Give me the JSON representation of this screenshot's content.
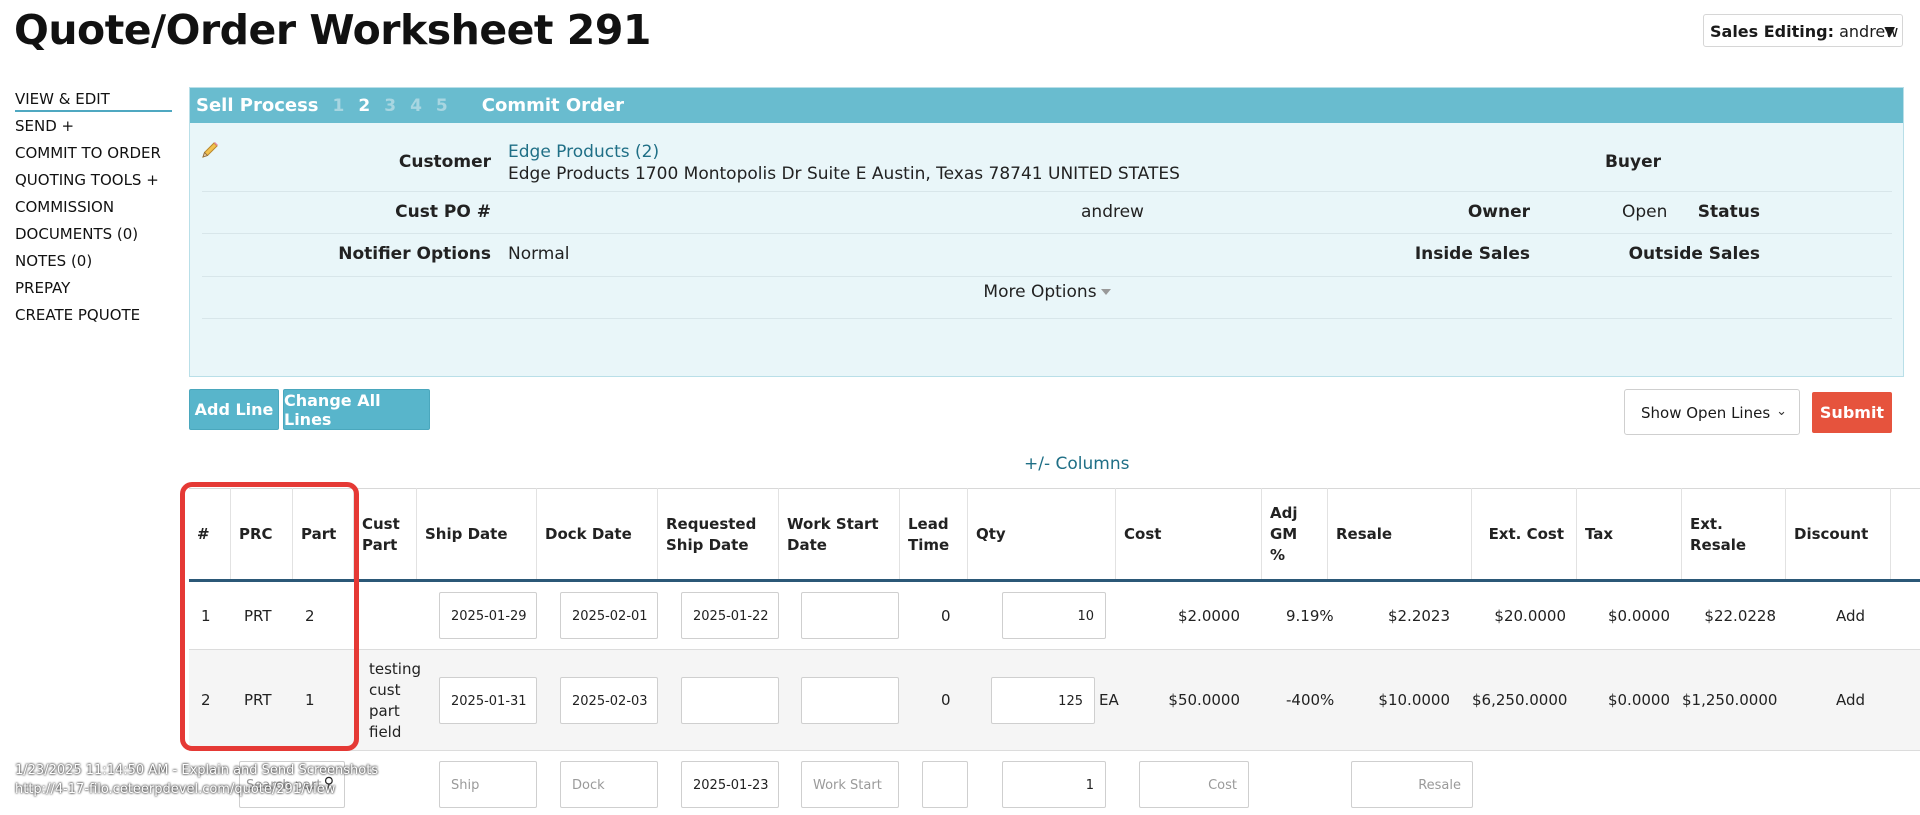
{
  "page": {
    "title": "Quote/Order Worksheet 291"
  },
  "sales_editing": {
    "label": "Sales Editing:",
    "user": "andrew"
  },
  "side_nav": {
    "items": [
      "VIEW & EDIT",
      "SEND +",
      "COMMIT TO ORDER",
      "QUOTING TOOLS +",
      "COMMISSION",
      "DOCUMENTS (0)",
      "NOTES (0)",
      "PREPAY",
      "CREATE PQUOTE"
    ]
  },
  "sell_process": {
    "title": "Sell Process",
    "steps": [
      "1",
      "2",
      "3",
      "4",
      "5"
    ],
    "current_step": "2",
    "commit": "Commit Order"
  },
  "details": {
    "customer_label": "Customer",
    "customer_link": "Edge Products (2)",
    "customer_address": "Edge Products 1700 Montopolis Dr Suite E Austin, Texas 78741 UNITED STATES",
    "buyer_label": "Buyer",
    "cust_po_label": "Cust PO #",
    "owner_label": "Owner",
    "owner_value": "andrew",
    "status_label": "Status",
    "status_value": "Open",
    "notifier_label": "Notifier Options",
    "notifier_value": "Normal",
    "inside_sales_label": "Inside Sales",
    "outside_sales_label": "Outside Sales",
    "more_options": "More Options"
  },
  "actions": {
    "add_line": "Add Line",
    "change_all_lines": "Change All Lines",
    "show_open_lines": "Show Open Lines",
    "submit": "Submit",
    "columns_toggle": "+/- Columns"
  },
  "table": {
    "headers": {
      "num": "#",
      "prc": "PRC",
      "part": "Part",
      "cust_part": "Cust Part",
      "ship_date": "Ship Date",
      "dock_date": "Dock Date",
      "req_ship_date": "Requested Ship Date",
      "work_start_date": "Work Start Date",
      "lead_time": "Lead Time",
      "qty": "Qty",
      "cost": "Cost",
      "adj_gm": "Adj GM %",
      "resale": "Resale",
      "ext_cost": "Ext. Cost",
      "tax": "Tax",
      "ext_resale": "Ext. Resale",
      "discount": "Discount"
    },
    "rows": [
      {
        "num": "1",
        "prc": "PRT",
        "part": "2",
        "cust_part": "",
        "ship_date": "2025-01-29",
        "dock_date": "2025-02-01",
        "req_ship_date": "2025-01-22",
        "work_start_date": "",
        "lead_time": "0",
        "qty": "10",
        "uom": "",
        "cost": "$2.0000",
        "adj_gm": "9.19%",
        "resale": "$2.2023",
        "ext_cost": "$20.0000",
        "tax": "$0.0000",
        "ext_resale": "$22.0228",
        "discount": "Add"
      },
      {
        "num": "2",
        "prc": "PRT",
        "part": "1",
        "cust_part": "testing cust part field",
        "ship_date": "2025-01-31",
        "dock_date": "2025-02-03",
        "req_ship_date": "",
        "work_start_date": "",
        "lead_time": "0",
        "qty": "125",
        "uom": "EA",
        "cost": "$50.0000",
        "adj_gm": "-400%",
        "resale": "$10.0000",
        "ext_cost": "$6,250.0000",
        "tax": "$0.0000",
        "ext_resale": "$1,250.0000",
        "discount": "Add"
      }
    ],
    "new_row": {
      "search_placeholder": "Search part",
      "ship_placeholder": "Ship",
      "dock_placeholder": "Dock",
      "req_ship_value": "2025-01-23",
      "work_start_placeholder": "Work Start",
      "qty_value": "1",
      "cost_placeholder": "Cost",
      "resale_placeholder": "Resale"
    }
  },
  "watermark": {
    "line1": "1/23/2025 11:14:50 AM - Explain and Send Screenshots",
    "line2": "http://4-17-filo.ceteerpdevel.com/quote/291/view"
  },
  "colors": {
    "accent": "#69bccf",
    "submit": "#e6533d",
    "highlight": "#e53935",
    "link": "#1f6f86"
  }
}
